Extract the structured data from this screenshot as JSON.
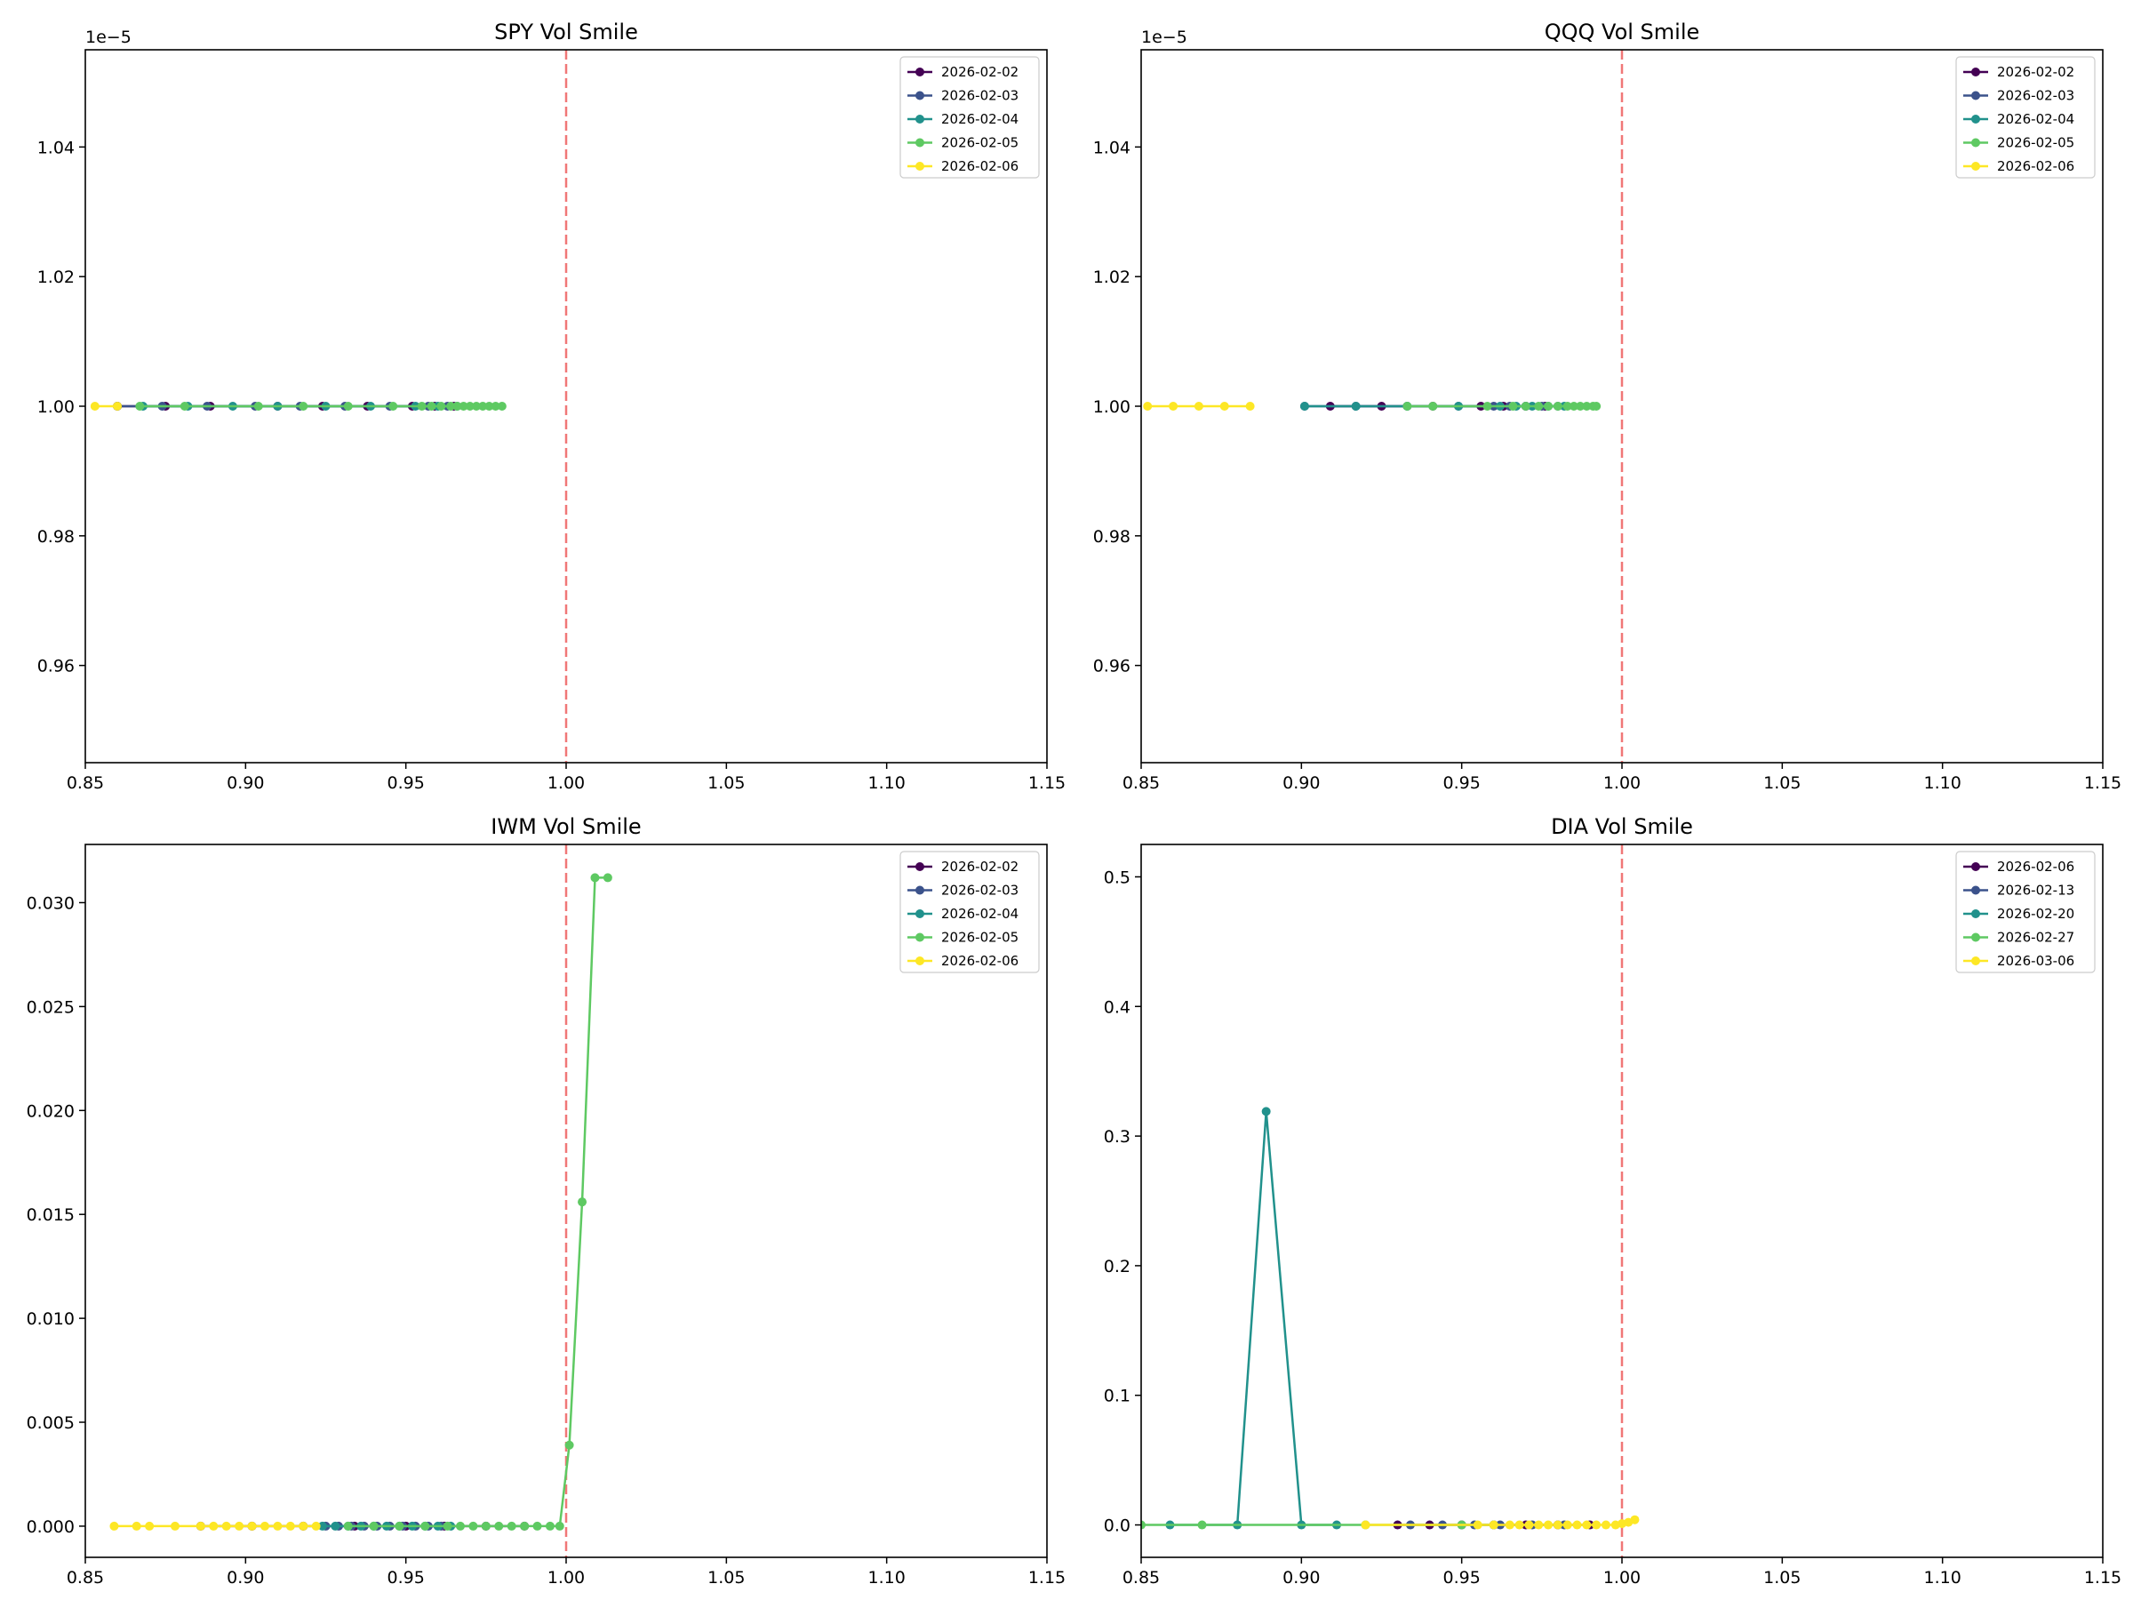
{
  "chart_data": [
    {
      "type": "line",
      "title": "SPY Vol Smile",
      "xlabel": "",
      "ylabel": "",
      "xlim": [
        0.85,
        1.15
      ],
      "ylim": [
        9.45e-06,
        1.055e-05
      ],
      "x_ticks": [
        0.85,
        0.9,
        0.95,
        1.0,
        1.05,
        1.1,
        1.15
      ],
      "x_tick_labels": [
        "0.85",
        "0.90",
        "0.95",
        "1.00",
        "1.05",
        "1.10",
        "1.15"
      ],
      "y_ticks": [
        9.6e-06,
        9.8e-06,
        1e-05,
        1.02e-05,
        1.04e-05
      ],
      "y_tick_labels": [
        "0.96",
        "0.98",
        "1.00",
        "1.02",
        "1.04"
      ],
      "y_offset_label": "1e−5",
      "vline": {
        "x": 1.0,
        "color": "#f07070",
        "style": "dashed"
      },
      "legend_position": "top-right",
      "grid": false,
      "series": [
        {
          "name": "2026-02-02",
          "color": "#440154",
          "x": [
            0.86,
            0.875,
            0.889,
            0.91,
            0.924,
            0.938,
            0.952,
            0.959,
            0.965
          ],
          "y": [
            1e-05,
            1e-05,
            1e-05,
            1e-05,
            1e-05,
            1e-05,
            1e-05,
            1e-05,
            1e-05
          ]
        },
        {
          "name": "2026-02-03",
          "color": "#3b528b",
          "x": [
            0.86,
            0.874,
            0.888,
            0.903,
            0.917,
            0.931,
            0.945,
            0.957,
            0.963
          ],
          "y": [
            1e-05,
            1e-05,
            1e-05,
            1e-05,
            1e-05,
            1e-05,
            1e-05,
            1e-05,
            1e-05
          ]
        },
        {
          "name": "2026-02-04",
          "color": "#21918c",
          "x": [
            0.868,
            0.882,
            0.896,
            0.91,
            0.925,
            0.939,
            0.953,
            0.96,
            0.966
          ],
          "y": [
            1e-05,
            1e-05,
            1e-05,
            1e-05,
            1e-05,
            1e-05,
            1e-05,
            1e-05,
            1e-05
          ]
        },
        {
          "name": "2026-02-05",
          "color": "#5ec962",
          "x": [
            0.867,
            0.881,
            0.904,
            0.918,
            0.932,
            0.946,
            0.955,
            0.958,
            0.961,
            0.964,
            0.966,
            0.968,
            0.97,
            0.972,
            0.974,
            0.976,
            0.978,
            0.98
          ],
          "y": [
            1e-05,
            1e-05,
            1e-05,
            1e-05,
            1e-05,
            1e-05,
            1e-05,
            1e-05,
            1e-05,
            1e-05,
            1e-05,
            1e-05,
            1e-05,
            1e-05,
            1e-05,
            1e-05,
            1e-05,
            1e-05
          ]
        },
        {
          "name": "2026-02-06",
          "color": "#fde725",
          "x": [
            0.853,
            0.86
          ],
          "y": [
            1e-05,
            1e-05
          ]
        }
      ]
    },
    {
      "type": "line",
      "title": "QQQ Vol Smile",
      "xlabel": "",
      "ylabel": "",
      "xlim": [
        0.85,
        1.15
      ],
      "ylim": [
        9.45e-06,
        1.055e-05
      ],
      "x_ticks": [
        0.85,
        0.9,
        0.95,
        1.0,
        1.05,
        1.1,
        1.15
      ],
      "x_tick_labels": [
        "0.85",
        "0.90",
        "0.95",
        "1.00",
        "1.05",
        "1.10",
        "1.15"
      ],
      "y_ticks": [
        9.6e-06,
        9.8e-06,
        1e-05,
        1.02e-05,
        1.04e-05
      ],
      "y_tick_labels": [
        "0.96",
        "0.98",
        "1.00",
        "1.02",
        "1.04"
      ],
      "y_offset_label": "1e−5",
      "vline": {
        "x": 1.0,
        "color": "#f07070",
        "style": "dashed"
      },
      "legend_position": "top-right",
      "grid": false,
      "series": [
        {
          "name": "2026-02-02",
          "color": "#440154",
          "x": [
            0.909,
            0.925,
            0.941,
            0.956,
            0.963,
            0.97,
            0.976
          ],
          "y": [
            1e-05,
            1e-05,
            1e-05,
            1e-05,
            1e-05,
            1e-05,
            1e-05
          ]
        },
        {
          "name": "2026-02-03",
          "color": "#3b528b",
          "x": [
            0.901,
            0.917,
            0.933,
            0.949,
            0.96,
            0.965,
            0.97,
            0.975,
            0.98
          ],
          "y": [
            1e-05,
            1e-05,
            1e-05,
            1e-05,
            1e-05,
            1e-05,
            1e-05,
            1e-05,
            1e-05
          ]
        },
        {
          "name": "2026-02-04",
          "color": "#21918c",
          "x": [
            0.901,
            0.917,
            0.933,
            0.949,
            0.962,
            0.967,
            0.972,
            0.977,
            0.982
          ],
          "y": [
            1e-05,
            1e-05,
            1e-05,
            1e-05,
            1e-05,
            1e-05,
            1e-05,
            1e-05,
            1e-05
          ]
        },
        {
          "name": "2026-02-05",
          "color": "#5ec962",
          "x": [
            0.933,
            0.941,
            0.958,
            0.966,
            0.97,
            0.974,
            0.977,
            0.98,
            0.983,
            0.985,
            0.987,
            0.989,
            0.991,
            0.992
          ],
          "y": [
            1e-05,
            1e-05,
            1e-05,
            1e-05,
            1e-05,
            1e-05,
            1e-05,
            1e-05,
            1e-05,
            1e-05,
            1e-05,
            1e-05,
            1e-05,
            1e-05
          ]
        },
        {
          "name": "2026-02-06",
          "color": "#fde725",
          "x": [
            0.852,
            0.86,
            0.868,
            0.876,
            0.884
          ],
          "y": [
            1e-05,
            1e-05,
            1e-05,
            1e-05,
            1e-05
          ]
        }
      ]
    },
    {
      "type": "line",
      "title": "IWM Vol Smile",
      "xlabel": "",
      "ylabel": "",
      "xlim": [
        0.85,
        1.15
      ],
      "ylim": [
        -0.0015,
        0.0328
      ],
      "x_ticks": [
        0.85,
        0.9,
        0.95,
        1.0,
        1.05,
        1.1,
        1.15
      ],
      "x_tick_labels": [
        "0.85",
        "0.90",
        "0.95",
        "1.00",
        "1.05",
        "1.10",
        "1.15"
      ],
      "y_ticks": [
        0,
        0.005,
        0.01,
        0.015,
        0.02,
        0.025,
        0.03
      ],
      "y_tick_labels": [
        "0.000",
        "0.005",
        "0.010",
        "0.015",
        "0.020",
        "0.025",
        "0.030"
      ],
      "y_offset_label": "",
      "vline": {
        "x": 1.0,
        "color": "#f07070",
        "style": "dashed"
      },
      "legend_position": "top-right",
      "grid": false,
      "series": [
        {
          "name": "2026-02-02",
          "color": "#440154",
          "x": [
            0.886,
            0.902,
            0.918,
            0.934,
            0.95,
            0.962,
            0.975,
            0.987
          ],
          "y": [
            0,
            0,
            0,
            0,
            0,
            0,
            0,
            0
          ]
        },
        {
          "name": "2026-02-03",
          "color": "#3b528b",
          "x": [
            0.925,
            0.929,
            0.933,
            0.937,
            0.941,
            0.945,
            0.949,
            0.953,
            0.957,
            0.961
          ],
          "y": [
            0,
            0,
            0,
            0,
            0,
            0,
            0,
            0,
            0,
            0
          ]
        },
        {
          "name": "2026-02-04",
          "color": "#21918c",
          "x": [
            0.924,
            0.928,
            0.932,
            0.936,
            0.94,
            0.944,
            0.948,
            0.952,
            0.956,
            0.96,
            0.964
          ],
          "y": [
            0,
            0,
            0,
            0,
            0,
            0,
            0,
            0,
            0,
            0,
            0
          ]
        },
        {
          "name": "2026-02-05",
          "color": "#5ec962",
          "x": [
            0.932,
            0.94,
            0.948,
            0.956,
            0.963,
            0.967,
            0.971,
            0.975,
            0.979,
            0.983,
            0.987,
            0.991,
            0.995,
            0.998,
            1.001,
            1.005,
            1.009,
            1.013
          ],
          "y": [
            0,
            0,
            0,
            0,
            0,
            0,
            0,
            0,
            0,
            0,
            0,
            0,
            0,
            0,
            0.0039,
            0.0156,
            0.0312,
            0.0312
          ]
        },
        {
          "name": "2026-02-06",
          "color": "#fde725",
          "x": [
            0.859,
            0.866,
            0.87,
            0.878,
            0.886,
            0.89,
            0.894,
            0.898,
            0.902,
            0.906,
            0.91,
            0.914,
            0.918,
            0.922
          ],
          "y": [
            0,
            0,
            0,
            0,
            0,
            0,
            0,
            0,
            0,
            0,
            0,
            0,
            0,
            0
          ]
        }
      ]
    },
    {
      "type": "line",
      "title": "DIA Vol Smile",
      "xlabel": "",
      "ylabel": "",
      "xlim": [
        0.85,
        1.15
      ],
      "ylim": [
        -0.025,
        0.525
      ],
      "x_ticks": [
        0.85,
        0.9,
        0.95,
        1.0,
        1.05,
        1.1,
        1.15
      ],
      "x_tick_labels": [
        "0.85",
        "0.90",
        "0.95",
        "1.00",
        "1.05",
        "1.10",
        "1.15"
      ],
      "y_ticks": [
        0,
        0.1,
        0.2,
        0.3,
        0.4,
        0.5
      ],
      "y_tick_labels": [
        "0.0",
        "0.1",
        "0.2",
        "0.3",
        "0.4",
        "0.5"
      ],
      "y_offset_label": "",
      "vline": {
        "x": 1.0,
        "color": "#f07070",
        "style": "dashed"
      },
      "legend_position": "top-right",
      "grid": false,
      "series": [
        {
          "name": "2026-02-06",
          "color": "#440154",
          "x": [
            0.93,
            0.94,
            0.95,
            0.96,
            0.97,
            0.98,
            0.99
          ],
          "y": [
            0,
            0,
            0,
            0,
            0,
            0,
            0
          ]
        },
        {
          "name": "2026-02-13",
          "color": "#3b528b",
          "x": [
            0.934,
            0.944,
            0.954,
            0.962,
            0.972,
            0.982
          ],
          "y": [
            0,
            0,
            0,
            0,
            0,
            0
          ]
        },
        {
          "name": "2026-02-20",
          "color": "#21918c",
          "x": [
            0.859,
            0.88,
            0.889,
            0.9,
            0.911
          ],
          "y": [
            0,
            0,
            0.319,
            0,
            0
          ]
        },
        {
          "name": "2026-02-27",
          "color": "#5ec962",
          "x": [
            0.85,
            0.869,
            0.92,
            0.95,
            0.96
          ],
          "y": [
            0,
            0,
            0,
            0,
            0
          ]
        },
        {
          "name": "2026-03-06",
          "color": "#fde725",
          "x": [
            0.92,
            0.955,
            0.96,
            0.965,
            0.968,
            0.971,
            0.974,
            0.977,
            0.98,
            0.983,
            0.986,
            0.989,
            0.992,
            0.995,
            0.998,
            1.0,
            1.002,
            1.004
          ],
          "y": [
            0,
            0,
            0,
            0,
            0,
            0,
            0,
            0,
            0,
            0,
            0,
            0,
            0,
            0,
            0,
            0.001,
            0.002,
            0.004
          ]
        }
      ]
    }
  ]
}
